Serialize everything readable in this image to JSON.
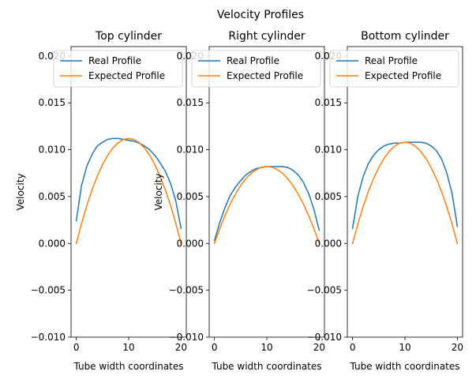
{
  "figure": {
    "suptitle": "Velocity Profiles"
  },
  "chart_data": [
    {
      "type": "line",
      "title": "Top cylinder",
      "xlabel": "Tube width coordinates",
      "ylabel": "Velocity",
      "xlim": [
        -1,
        21
      ],
      "ylim": [
        -0.01,
        0.021
      ],
      "xticks": [
        0,
        10,
        20
      ],
      "yticks": [
        -0.01,
        -0.005,
        0.0,
        0.005,
        0.01,
        0.015,
        0.02
      ],
      "ytick_labels": [
        "−0.010",
        "−0.005",
        "0.000",
        "0.005",
        "0.010",
        "0.015",
        "0.020"
      ],
      "grid": false,
      "legend": "upper-right",
      "series": [
        {
          "name": "Real Profile",
          "color": "#1f77b4",
          "x": [
            0,
            1,
            2,
            3,
            4,
            5,
            6,
            7,
            8,
            9,
            10,
            11,
            12,
            13,
            14,
            15,
            16,
            17,
            18,
            19,
            20
          ],
          "y": [
            0.0024,
            0.0062,
            0.0082,
            0.0095,
            0.0104,
            0.0108,
            0.0111,
            0.0112,
            0.0112,
            0.0111,
            0.011,
            0.0109,
            0.0107,
            0.0104,
            0.01,
            0.0094,
            0.0086,
            0.0077,
            0.0064,
            0.0045,
            0.0016
          ]
        },
        {
          "name": "Expected Profile",
          "color": "#ff7f0e",
          "x": [
            0,
            1,
            2,
            3,
            4,
            5,
            6,
            7,
            8,
            9,
            10,
            11,
            12,
            13,
            14,
            15,
            16,
            17,
            18,
            19,
            20
          ],
          "y": [
            0.0,
            0.00213,
            0.00403,
            0.00571,
            0.00717,
            0.0084,
            0.00941,
            0.01019,
            0.01075,
            0.01109,
            0.0112,
            0.01109,
            0.01075,
            0.01019,
            0.00941,
            0.0084,
            0.00717,
            0.00571,
            0.00403,
            0.00213,
            0.0
          ]
        }
      ]
    },
    {
      "type": "line",
      "title": "Right cylinder",
      "xlabel": "Tube width coordinates",
      "ylabel": "Velocity",
      "xlim": [
        -1,
        21
      ],
      "ylim": [
        -0.01,
        0.021
      ],
      "xticks": [
        0,
        10,
        20
      ],
      "yticks": [
        -0.01,
        -0.005,
        0.0,
        0.005,
        0.01,
        0.015,
        0.02
      ],
      "ytick_labels": [
        "−0.010",
        "−0.005",
        "0.000",
        "0.005",
        "0.010",
        "0.015",
        "0.020"
      ],
      "grid": false,
      "legend": "upper-right",
      "series": [
        {
          "name": "Real Profile",
          "color": "#1f77b4",
          "x": [
            0,
            1,
            2,
            3,
            4,
            5,
            6,
            7,
            8,
            9,
            10,
            11,
            12,
            13,
            14,
            15,
            16,
            17,
            18,
            19,
            20
          ],
          "y": [
            0.0003,
            0.0022,
            0.0038,
            0.0051,
            0.006,
            0.0067,
            0.0073,
            0.0077,
            0.008,
            0.0081,
            0.0082,
            0.0082,
            0.0082,
            0.0082,
            0.0081,
            0.0078,
            0.0073,
            0.0065,
            0.0053,
            0.0036,
            0.0014
          ]
        },
        {
          "name": "Expected Profile",
          "color": "#ff7f0e",
          "x": [
            0,
            1,
            2,
            3,
            4,
            5,
            6,
            7,
            8,
            9,
            10,
            11,
            12,
            13,
            14,
            15,
            16,
            17,
            18,
            19,
            20
          ],
          "y": [
            0.0,
            0.00156,
            0.00296,
            0.00419,
            0.00526,
            0.00616,
            0.0069,
            0.00748,
            0.00788,
            0.00813,
            0.0082,
            0.00813,
            0.00788,
            0.00748,
            0.0069,
            0.00616,
            0.00526,
            0.00419,
            0.00296,
            0.00156,
            0.0
          ]
        }
      ]
    },
    {
      "type": "line",
      "title": "Bottom cylinder",
      "xlabel": "Tube width coordinates",
      "ylabel": "",
      "xlim": [
        -1,
        21
      ],
      "ylim": [
        -0.01,
        0.021
      ],
      "xticks": [
        0,
        10,
        20
      ],
      "yticks": [
        -0.01,
        -0.005,
        0.0,
        0.005,
        0.01,
        0.015,
        0.02
      ],
      "ytick_labels": [
        "−0.010",
        "−0.005",
        "0.000",
        "0.005",
        "0.010",
        "0.015",
        "0.020"
      ],
      "grid": false,
      "legend": "upper-right",
      "series": [
        {
          "name": "Real Profile",
          "color": "#1f77b4",
          "x": [
            0,
            1,
            2,
            3,
            4,
            5,
            6,
            7,
            8,
            9,
            10,
            11,
            12,
            13,
            14,
            15,
            16,
            17,
            18,
            19,
            20
          ],
          "y": [
            0.0016,
            0.005,
            0.0071,
            0.0085,
            0.0094,
            0.01,
            0.0104,
            0.0106,
            0.0107,
            0.0107,
            0.0108,
            0.0108,
            0.0108,
            0.0108,
            0.0107,
            0.0104,
            0.0099,
            0.009,
            0.0075,
            0.0053,
            0.0018
          ]
        },
        {
          "name": "Expected Profile",
          "color": "#ff7f0e",
          "x": [
            0,
            1,
            2,
            3,
            4,
            5,
            6,
            7,
            8,
            9,
            10,
            11,
            12,
            13,
            14,
            15,
            16,
            17,
            18,
            19,
            20
          ],
          "y": [
            0.0,
            0.00205,
            0.00389,
            0.00551,
            0.00691,
            0.0081,
            0.00907,
            0.00983,
            0.01037,
            0.0107,
            0.0108,
            0.0107,
            0.01037,
            0.00983,
            0.00907,
            0.0081,
            0.00691,
            0.00551,
            0.00389,
            0.00205,
            0.0
          ]
        }
      ]
    }
  ]
}
